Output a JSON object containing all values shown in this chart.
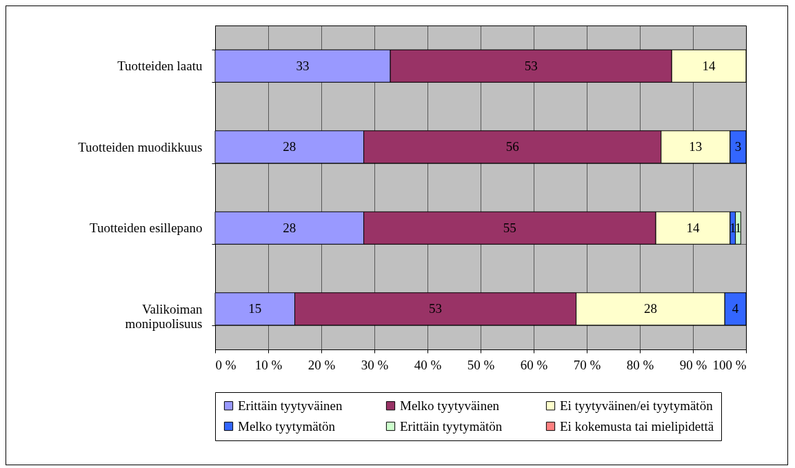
{
  "chart_data": {
    "type": "bar",
    "orientation": "horizontal",
    "stacked": true,
    "categories": [
      "Tuotteiden laatu",
      "Tuotteiden muodikkuus",
      "Tuotteiden esillepano",
      "Valikoiman monipuolisuus"
    ],
    "series": [
      {
        "name": "Erittäin tyytyväinen",
        "color": "#9999ff",
        "values": [
          33,
          28,
          28,
          15
        ]
      },
      {
        "name": "Melko tyytyväinen",
        "color": "#993366",
        "values": [
          53,
          56,
          55,
          53
        ]
      },
      {
        "name": "Ei tyytyväinen/ei tyytymätön",
        "color": "#ffffcc",
        "values": [
          14,
          13,
          14,
          28
        ]
      },
      {
        "name": "Melko tyytymätön",
        "color": "#3366ff",
        "values": [
          null,
          3,
          1,
          4
        ]
      },
      {
        "name": "Erittäin tyytymätön",
        "color": "#ccffcc",
        "values": [
          null,
          null,
          1,
          null
        ]
      },
      {
        "name": "Ei kokemusta tai mielipidettä",
        "color": "#ff8080",
        "values": [
          null,
          null,
          null,
          null
        ]
      }
    ],
    "xlim": [
      0,
      100
    ],
    "xticks": [
      {
        "value": 0,
        "label": "0 %"
      },
      {
        "value": 10,
        "label": "10 %"
      },
      {
        "value": 20,
        "label": "20 %"
      },
      {
        "value": 30,
        "label": "30 %"
      },
      {
        "value": 40,
        "label": "40 %"
      },
      {
        "value": 50,
        "label": "50 %"
      },
      {
        "value": 60,
        "label": "60 %"
      },
      {
        "value": 70,
        "label": "70 %"
      },
      {
        "value": 80,
        "label": "80 %"
      },
      {
        "value": 90,
        "label": "90 %"
      },
      {
        "value": 100,
        "label": "100 %"
      }
    ],
    "grid": true,
    "legend": "bottom",
    "data_labels": true
  }
}
